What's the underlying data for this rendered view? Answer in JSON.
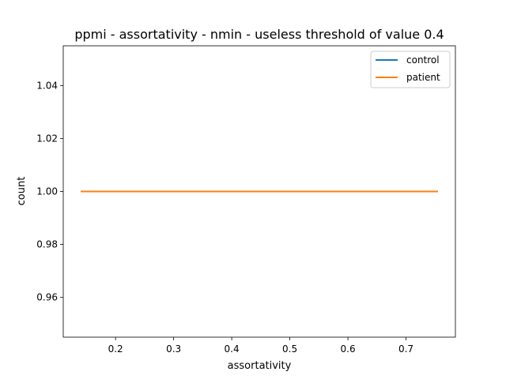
{
  "chart_data": {
    "type": "line",
    "title": "ppmi - assortativity - nmin - useless threshold of value 0.4",
    "xlabel": "assortativity",
    "ylabel": "count",
    "xlim": [
      0.11,
      0.785
    ],
    "ylim": [
      0.945,
      1.055
    ],
    "xticks": [
      0.2,
      0.3,
      0.4,
      0.5,
      0.6,
      0.7
    ],
    "xtick_labels": [
      "0.2",
      "0.3",
      "0.4",
      "0.5",
      "0.6",
      "0.7"
    ],
    "yticks": [
      0.96,
      0.98,
      1.0,
      1.02,
      1.04
    ],
    "ytick_labels": [
      "0.96",
      "0.98",
      "1.00",
      "1.02",
      "1.04"
    ],
    "grid": false,
    "legend_position": "top-right",
    "series": [
      {
        "name": "control",
        "color": "#1f77b4",
        "x": [
          0.14,
          0.755
        ],
        "y": [
          1.0,
          1.0
        ]
      },
      {
        "name": "patient",
        "color": "#ff7f0e",
        "x": [
          0.14,
          0.755
        ],
        "y": [
          1.0,
          1.0
        ]
      }
    ]
  }
}
